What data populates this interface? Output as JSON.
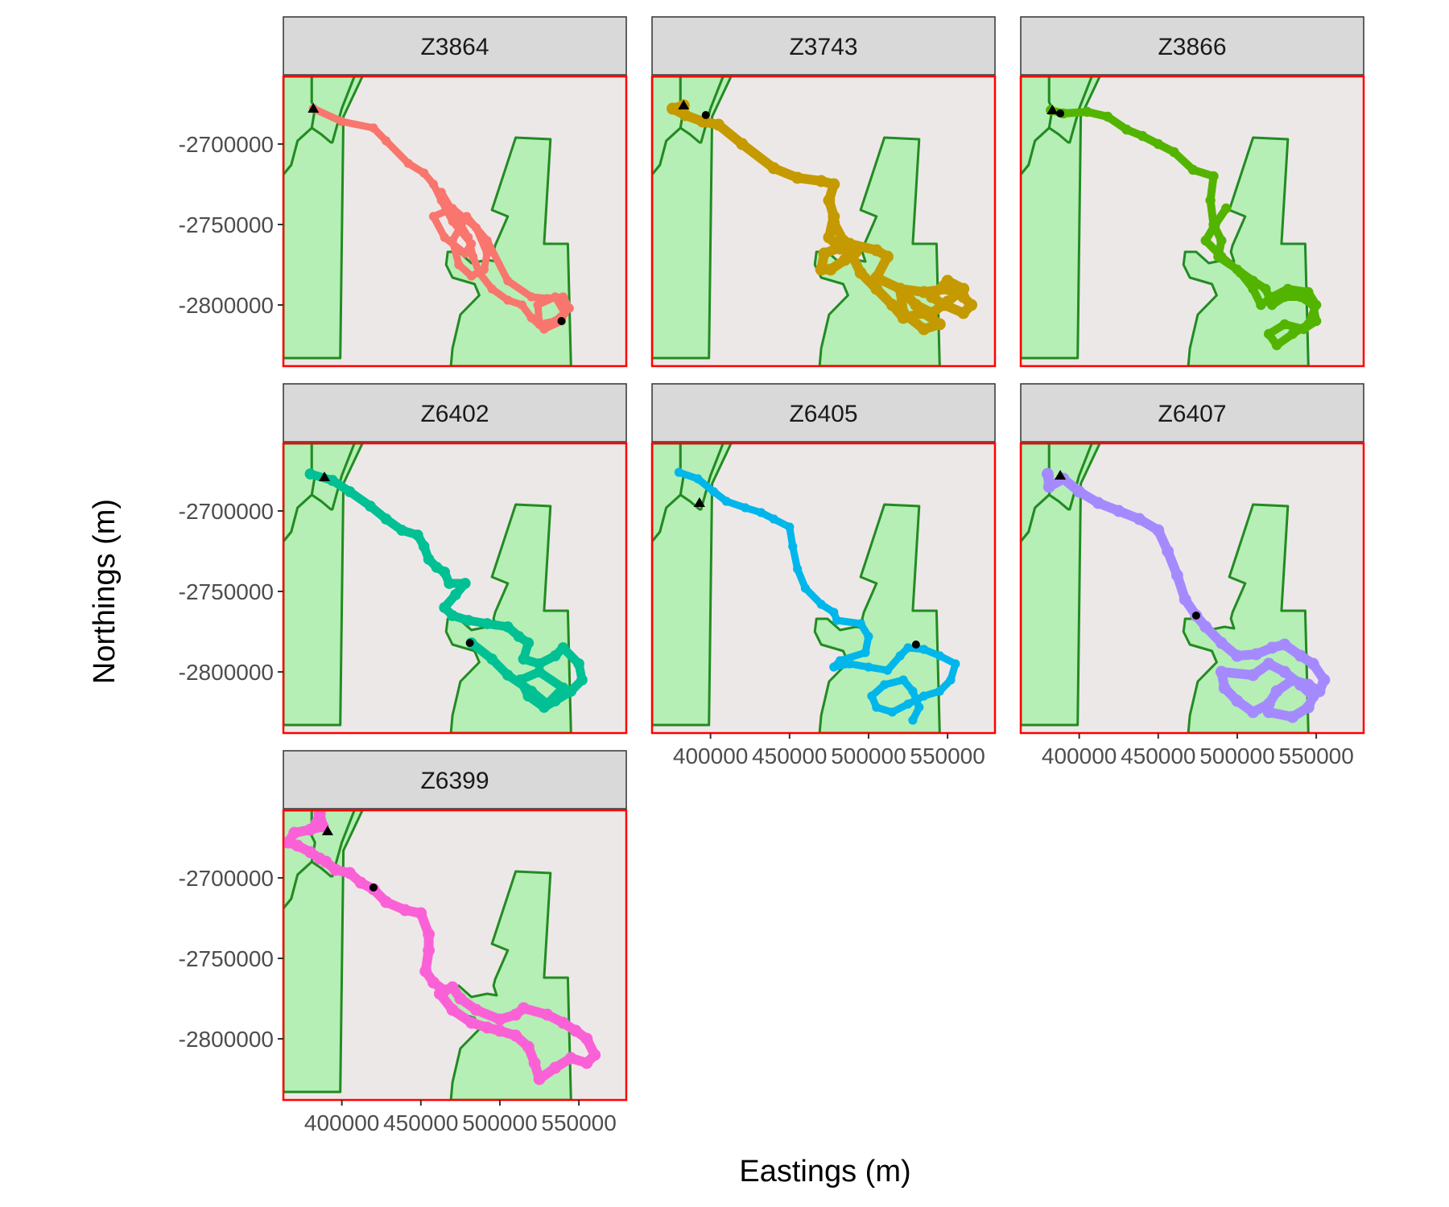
{
  "chart_data": {
    "type": "scatter",
    "facets": [
      "Z3864",
      "Z3743",
      "Z3866",
      "Z6402",
      "Z6405",
      "Z6407",
      "Z6399"
    ],
    "xlabel": "Eastings (m)",
    "ylabel": "Northings (m)",
    "xlim": [
      363000,
      580000
    ],
    "ylim": [
      -2838000,
      -2658000
    ],
    "x_ticks": [
      400000,
      450000,
      500000,
      550000
    ],
    "x_tick_labels": [
      "400000",
      "450000",
      "500000",
      "550000"
    ],
    "y_ticks": [
      -2700000,
      -2750000,
      -2800000
    ],
    "y_tick_labels": [
      "-2700000",
      "-2750000",
      "-2800000"
    ],
    "grid": false,
    "legend": "none",
    "colors": {
      "panel_background": "#ede8e8",
      "panel_border": "#ff0000",
      "strip_fill": "#d9d9d9",
      "polygon_fill": "#b5efb5",
      "polygon_stroke": "#228b22",
      "marker": "#000000"
    },
    "polygons": [
      {
        "name": "left-area",
        "points": [
          [
            363000,
            -2658000
          ],
          [
            381000,
            -2658000
          ],
          [
            381000,
            -2674000
          ],
          [
            383000,
            -2678000
          ],
          [
            381000,
            -2690000
          ],
          [
            372000,
            -2698000
          ],
          [
            368000,
            -2713000
          ],
          [
            363000,
            -2719000
          ]
        ]
      },
      {
        "name": "left-area-east",
        "points": [
          [
            381000,
            -2674000
          ],
          [
            383000,
            -2678000
          ],
          [
            381000,
            -2690000
          ],
          [
            387000,
            -2694000
          ],
          [
            393000,
            -2699000
          ],
          [
            394000,
            -2699000
          ],
          [
            400000,
            -2678000
          ],
          [
            408000,
            -2658000
          ],
          [
            381000,
            -2658000
          ]
        ]
      },
      {
        "name": "central-corridor",
        "points": [
          [
            400000,
            -2678000
          ],
          [
            408000,
            -2658000
          ],
          [
            413000,
            -2658000
          ],
          [
            401000,
            -2683000
          ],
          [
            399000,
            -2833000
          ],
          [
            363000,
            -2833000
          ],
          [
            363000,
            -2719000
          ],
          [
            368000,
            -2713000
          ],
          [
            372000,
            -2698000
          ],
          [
            381000,
            -2690000
          ],
          [
            387000,
            -2694000
          ],
          [
            393000,
            -2699000
          ],
          [
            394000,
            -2699000
          ]
        ]
      },
      {
        "name": "east-area",
        "points": [
          [
            510000,
            -2696000
          ],
          [
            532000,
            -2697000
          ],
          [
            528000,
            -2762000
          ],
          [
            543000,
            -2762000
          ],
          [
            545000,
            -2838000
          ],
          [
            469000,
            -2838000
          ],
          [
            470000,
            -2827000
          ],
          [
            475000,
            -2806000
          ],
          [
            482000,
            -2799000
          ],
          [
            487000,
            -2794000
          ],
          [
            484000,
            -2787000
          ],
          [
            470000,
            -2783000
          ],
          [
            466000,
            -2775000
          ],
          [
            467000,
            -2767000
          ],
          [
            474000,
            -2767000
          ],
          [
            482000,
            -2774000
          ],
          [
            492000,
            -2772000
          ],
          [
            498000,
            -2773000
          ],
          [
            496000,
            -2767000
          ],
          [
            497000,
            -2763000
          ],
          [
            505000,
            -2745000
          ],
          [
            495000,
            -2741000
          ]
        ]
      }
    ],
    "series": [
      {
        "name": "Z3864",
        "color": "#f8766d",
        "width": 9,
        "start": [
          382000,
          -2678000
        ],
        "end": [
          539000,
          -2810000
        ],
        "x": [
          382000,
          400000,
          420000,
          428000,
          442000,
          452000,
          458000,
          463000,
          470000,
          482000,
          478000,
          465000,
          458000,
          470000,
          485000,
          492000,
          490000,
          482000,
          474000,
          470000,
          479000,
          492000,
          505000,
          520000,
          530000,
          540000,
          544000,
          535000,
          525000,
          524000,
          535000,
          541000,
          539000,
          528000,
          520000,
          514000,
          505000,
          495000,
          487000,
          483000,
          480000,
          472000,
          463000
        ],
        "y": [
          -2678000,
          -2686000,
          -2690000,
          -2698000,
          -2712000,
          -2718000,
          -2725000,
          -2735000,
          -2748000,
          -2762000,
          -2768000,
          -2758000,
          -2745000,
          -2740000,
          -2752000,
          -2768000,
          -2778000,
          -2782000,
          -2775000,
          -2760000,
          -2745000,
          -2760000,
          -2785000,
          -2795000,
          -2796000,
          -2795000,
          -2802000,
          -2810000,
          -2812000,
          -2800000,
          -2795000,
          -2805000,
          -2810000,
          -2815000,
          -2808000,
          -2800000,
          -2797000,
          -2790000,
          -2780000,
          -2770000,
          -2758000,
          -2745000,
          -2730000
        ]
      },
      {
        "name": "Z3743",
        "color": "#c49a00",
        "width": 12,
        "start": [
          383000,
          -2676000
        ],
        "end": [
          397000,
          -2682000
        ],
        "x": [
          383000,
          376000,
          384000,
          395000,
          405000,
          420000,
          440000,
          455000,
          470000,
          478000,
          475000,
          478000,
          475000,
          482000,
          492000,
          485000,
          476000,
          470000,
          472000,
          488000,
          505000,
          512000,
          505000,
          520000,
          535000,
          550000,
          560000,
          565000,
          560000,
          548000,
          540000,
          550000,
          560000,
          550000,
          540000,
          530000,
          520000,
          522000,
          535000,
          545000,
          535000,
          522000,
          515000,
          505000,
          495000,
          490000,
          484000,
          478000
        ],
        "y": [
          -2676000,
          -2678000,
          -2682000,
          -2686000,
          -2688000,
          -2700000,
          -2715000,
          -2721000,
          -2723000,
          -2725000,
          -2735000,
          -2745000,
          -2758000,
          -2765000,
          -2767000,
          -2772000,
          -2778000,
          -2778000,
          -2768000,
          -2762000,
          -2766000,
          -2770000,
          -2783000,
          -2790000,
          -2792000,
          -2790000,
          -2795000,
          -2800000,
          -2805000,
          -2800000,
          -2795000,
          -2785000,
          -2790000,
          -2798000,
          -2805000,
          -2800000,
          -2790000,
          -2805000,
          -2815000,
          -2812000,
          -2805000,
          -2808000,
          -2800000,
          -2790000,
          -2780000,
          -2770000,
          -2760000,
          -2749000
        ]
      },
      {
        "name": "Z3866",
        "color": "#53b400",
        "width": 10,
        "start": [
          383000,
          -2679000
        ],
        "end": [
          388000,
          -2681000
        ],
        "x": [
          382000,
          390000,
          405000,
          418000,
          430000,
          440000,
          450000,
          460000,
          472000,
          485000,
          483000,
          485000,
          490000,
          488000,
          500000,
          510000,
          518000,
          522000,
          530000,
          540000,
          548000,
          550000,
          542000,
          530000,
          520000,
          525000,
          535000,
          545000,
          550000,
          545000,
          532000,
          522000,
          515000,
          510000,
          502000,
          490000,
          480000,
          486000,
          493000
        ],
        "y": [
          -2679000,
          -2681000,
          -2680000,
          -2683000,
          -2691000,
          -2695000,
          -2700000,
          -2705000,
          -2716000,
          -2720000,
          -2735000,
          -2750000,
          -2760000,
          -2770000,
          -2778000,
          -2785000,
          -2790000,
          -2800000,
          -2795000,
          -2795000,
          -2800000,
          -2810000,
          -2815000,
          -2812000,
          -2818000,
          -2825000,
          -2818000,
          -2812000,
          -2800000,
          -2792000,
          -2790000,
          -2795000,
          -2800000,
          -2790000,
          -2780000,
          -2770000,
          -2760000,
          -2750000,
          -2740000
        ]
      },
      {
        "name": "Z6402",
        "color": "#00c094",
        "width": 11,
        "start": [
          389000,
          -2679000
        ],
        "end": [
          481000,
          -2782000
        ],
        "x": [
          380000,
          394000,
          405000,
          418000,
          428000,
          438000,
          448000,
          452000,
          455000,
          460000,
          465000,
          468000,
          478000,
          472000,
          465000,
          470000,
          480000,
          492000,
          505000,
          512000,
          518000,
          515000,
          525000,
          535000,
          540000,
          550000,
          552000,
          545000,
          535000,
          528000,
          518000,
          513000,
          525000,
          540000,
          530000,
          520000,
          505000,
          495000,
          482000
        ],
        "y": [
          -2677000,
          -2681000,
          -2688000,
          -2697000,
          -2705000,
          -2712000,
          -2715000,
          -2722000,
          -2730000,
          -2735000,
          -2738000,
          -2745000,
          -2745000,
          -2752000,
          -2760000,
          -2765000,
          -2768000,
          -2770000,
          -2772000,
          -2778000,
          -2782000,
          -2792000,
          -2795000,
          -2790000,
          -2785000,
          -2795000,
          -2805000,
          -2812000,
          -2818000,
          -2822000,
          -2815000,
          -2805000,
          -2800000,
          -2810000,
          -2820000,
          -2812000,
          -2802000,
          -2792000,
          -2782000
        ]
      },
      {
        "name": "Z6405",
        "color": "#00b6eb",
        "width": 9,
        "start": [
          393000,
          -2695000
        ],
        "end": [
          530000,
          -2783000
        ],
        "x": [
          380000,
          392000,
          402000,
          410000,
          422000,
          432000,
          440000,
          450000,
          452000,
          455000,
          460000,
          470000,
          478000,
          480000,
          495000,
          500000,
          498000,
          482000,
          478000,
          488000,
          500000,
          512000,
          520000,
          525000,
          535000,
          545000,
          555000,
          552000,
          545000,
          535000,
          525000,
          515000,
          505000,
          502000,
          510000,
          522000,
          528000,
          532000,
          528000
        ],
        "y": [
          -2676000,
          -2680000,
          -2688000,
          -2694000,
          -2698000,
          -2701000,
          -2705000,
          -2710000,
          -2722000,
          -2736000,
          -2748000,
          -2758000,
          -2763000,
          -2768000,
          -2770000,
          -2778000,
          -2788000,
          -2793000,
          -2797000,
          -2795000,
          -2797000,
          -2799000,
          -2790000,
          -2785000,
          -2786000,
          -2790000,
          -2795000,
          -2805000,
          -2812000,
          -2815000,
          -2820000,
          -2825000,
          -2822000,
          -2815000,
          -2808000,
          -2805000,
          -2812000,
          -2822000,
          -2830000
        ]
      },
      {
        "name": "Z6407",
        "color": "#a58aff",
        "width": 12,
        "start": [
          388000,
          -2678000
        ],
        "end": [
          474000,
          -2765000
        ],
        "x": [
          380000,
          381000,
          390000,
          400000,
          412000,
          425000,
          438000,
          450000,
          456000,
          462000,
          467000,
          474000,
          480000,
          490000,
          500000,
          512000,
          522000,
          530000,
          540000,
          548000,
          555000,
          552000,
          545000,
          535000,
          525000,
          520000,
          510000,
          500000,
          492000,
          490000,
          510000,
          520000,
          530000,
          540000,
          548000,
          545000,
          535000,
          520000
        ],
        "y": [
          -2677000,
          -2685000,
          -2680000,
          -2688000,
          -2695000,
          -2700000,
          -2705000,
          -2712000,
          -2725000,
          -2740000,
          -2755000,
          -2765000,
          -2772000,
          -2782000,
          -2790000,
          -2789000,
          -2785000,
          -2783000,
          -2790000,
          -2795000,
          -2805000,
          -2812000,
          -2808000,
          -2805000,
          -2812000,
          -2820000,
          -2825000,
          -2818000,
          -2810000,
          -2800000,
          -2802000,
          -2795000,
          -2800000,
          -2808000,
          -2815000,
          -2822000,
          -2828000,
          -2825000
        ]
      },
      {
        "name": "Z6399",
        "color": "#fb61d7",
        "width": 12,
        "start": [
          391000,
          -2671000
        ],
        "end": [
          420000,
          -2706000
        ],
        "x": [
          384000,
          386000,
          388000,
          380000,
          370000,
          366000,
          372000,
          380000,
          386000,
          390000,
          396000,
          405000,
          412000,
          420000,
          428000,
          440000,
          450000,
          455000,
          455000,
          453000,
          458000,
          465000,
          470000,
          475000,
          485000,
          500000,
          510000,
          515000,
          530000,
          540000,
          548000,
          555000,
          560000,
          555000,
          545000,
          535000,
          525000,
          522000,
          518000,
          510000,
          500000,
          492000,
          482000,
          470000,
          462000
        ],
        "y": [
          -2666000,
          -2660000,
          -2668000,
          -2670000,
          -2672000,
          -2678000,
          -2680000,
          -2684000,
          -2688000,
          -2690000,
          -2695000,
          -2697000,
          -2703000,
          -2707000,
          -2715000,
          -2720000,
          -2722000,
          -2735000,
          -2745000,
          -2758000,
          -2765000,
          -2770000,
          -2768000,
          -2775000,
          -2782000,
          -2788000,
          -2785000,
          -2781000,
          -2785000,
          -2790000,
          -2795000,
          -2800000,
          -2810000,
          -2815000,
          -2812000,
          -2818000,
          -2825000,
          -2815000,
          -2805000,
          -2798000,
          -2795000,
          -2793000,
          -2790000,
          -2782000,
          -2772000
        ]
      }
    ]
  }
}
